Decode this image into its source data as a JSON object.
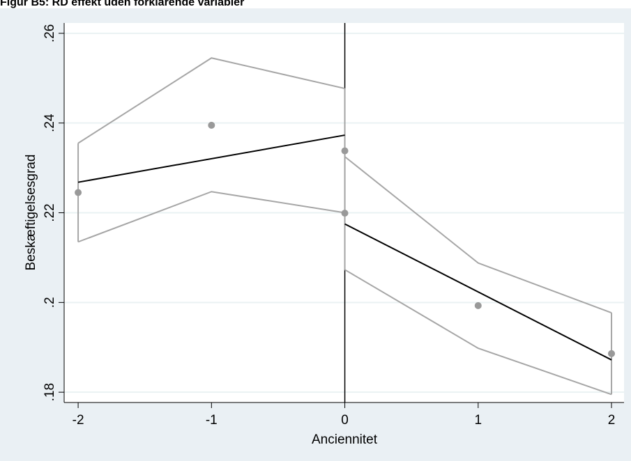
{
  "chart_data": {
    "type": "scatter",
    "title": "Figur B5: RD effekt uden forklarende variabler",
    "xlabel": "Anciennitet",
    "ylabel": "Beskæftigelsesgrad",
    "xlim": [
      -2.105,
      2.094
    ],
    "ylim": [
      0.1777,
      0.2623
    ],
    "xticks": [
      -2,
      -1,
      0,
      1,
      2
    ],
    "yticks": [
      {
        "value": 0.18,
        "label": ".18"
      },
      {
        "value": 0.2,
        "label": ".2"
      },
      {
        "value": 0.22,
        "label": ".22"
      },
      {
        "value": 0.24,
        "label": ".24"
      },
      {
        "value": 0.26,
        "label": ".26"
      }
    ],
    "grid": true,
    "cutoff": 0,
    "points": {
      "color": "#999999",
      "x": [
        -2,
        -1,
        0,
        0,
        1,
        2
      ],
      "y": [
        0.2245,
        0.2395,
        0.2338,
        0.2199,
        0.1993,
        0.1886
      ]
    },
    "fits": [
      {
        "color": "#000000",
        "x": [
          -2,
          0
        ],
        "y": [
          0.2268,
          0.2373
        ]
      },
      {
        "color": "#000000",
        "x": [
          0,
          2
        ],
        "y": [
          0.2175,
          0.1872
        ]
      }
    ],
    "bands": [
      {
        "color": "#a6a6a6",
        "x": [
          -2,
          -1,
          0
        ],
        "upper": [
          0.2355,
          0.2545,
          0.2477
        ],
        "lower": [
          0.2135,
          0.2247,
          0.22
        ]
      },
      {
        "color": "#a6a6a6",
        "x": [
          0,
          1,
          2
        ],
        "upper": [
          0.2325,
          0.2088,
          0.1977
        ],
        "lower": [
          0.2073,
          0.1898,
          0.1795
        ]
      }
    ]
  }
}
